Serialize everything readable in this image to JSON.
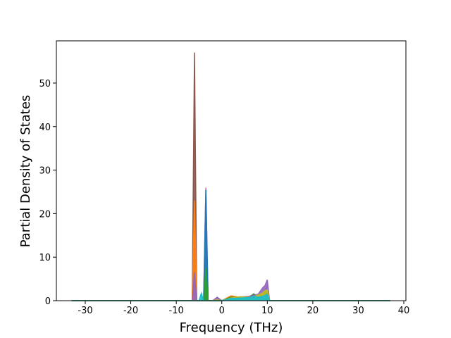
{
  "chart_data": {
    "type": "area",
    "xlabel": "Frequency (THz)",
    "ylabel": "Partial Density of States",
    "x": [
      -33,
      -7,
      -6.5,
      -6,
      -5.5,
      -5,
      -4.5,
      -4,
      -3.5,
      -3,
      -2,
      -1,
      0,
      2,
      4,
      6,
      7,
      8,
      9,
      9.5,
      10,
      10.5,
      37
    ],
    "series": [
      {
        "color": "#8c564b",
        "values": [
          0,
          0,
          0,
          57,
          0,
          0,
          0,
          0,
          0,
          0,
          0,
          0.3,
          0,
          0.5,
          0.6,
          0.8,
          1.0,
          1.2,
          1.5,
          2.5,
          3.0,
          0,
          0
        ]
      },
      {
        "color": "#e377c2",
        "values": [
          0,
          0,
          0,
          1.8,
          0,
          0,
          0,
          0,
          26,
          0,
          0,
          0,
          0,
          0.3,
          0.5,
          0.6,
          1.6,
          1,
          1.5,
          2,
          3.5,
          0,
          0
        ]
      },
      {
        "color": "#1f77b4",
        "values": [
          0,
          0,
          0,
          0,
          0,
          0,
          0,
          0,
          25.5,
          0,
          0,
          0,
          0,
          0.4,
          0.5,
          0.6,
          0.8,
          0.9,
          1.2,
          2,
          3,
          0,
          0
        ]
      },
      {
        "color": "#ff7f0e",
        "values": [
          0,
          0,
          0,
          23,
          0,
          0,
          0,
          0,
          0,
          0,
          0,
          0.4,
          0,
          1.1,
          0.8,
          1,
          1.3,
          1.1,
          1.8,
          2,
          2.2,
          0,
          0
        ]
      },
      {
        "color": "#2ca02c",
        "values": [
          0,
          0,
          0,
          0,
          0,
          0,
          0,
          0,
          7.5,
          0,
          0,
          0,
          0,
          0.8,
          0.7,
          0.9,
          1.5,
          1,
          1.2,
          1.8,
          2.5,
          0,
          0
        ]
      },
      {
        "color": "#9467bd",
        "values": [
          0,
          0,
          0,
          6.5,
          0,
          0,
          0,
          0,
          0,
          0,
          0,
          0.8,
          0,
          0.6,
          0.9,
          1,
          1.2,
          1.5,
          3,
          3.5,
          4.8,
          0,
          0
        ]
      },
      {
        "color": "#bcbd22",
        "values": [
          0,
          0,
          0,
          0,
          0,
          0,
          0,
          0,
          0,
          0,
          0,
          0.2,
          0,
          0.6,
          0.9,
          0.8,
          0.9,
          1.3,
          1.8,
          2.3,
          2.5,
          0,
          0
        ]
      },
      {
        "color": "#17becf",
        "values": [
          0,
          0,
          0,
          0,
          0,
          0,
          1.7,
          0,
          0,
          0,
          0,
          0,
          0,
          0.5,
          0.6,
          0.7,
          1,
          0.8,
          1,
          1.2,
          1.5,
          0,
          0
        ]
      }
    ],
    "xlim": [
      -36.35,
      40.46
    ],
    "ylim": [
      0,
      59.7
    ],
    "xticks": [
      -30,
      -20,
      -10,
      0,
      10,
      20,
      30,
      40
    ],
    "yticks": [
      0,
      10,
      20,
      30,
      40,
      50
    ]
  }
}
